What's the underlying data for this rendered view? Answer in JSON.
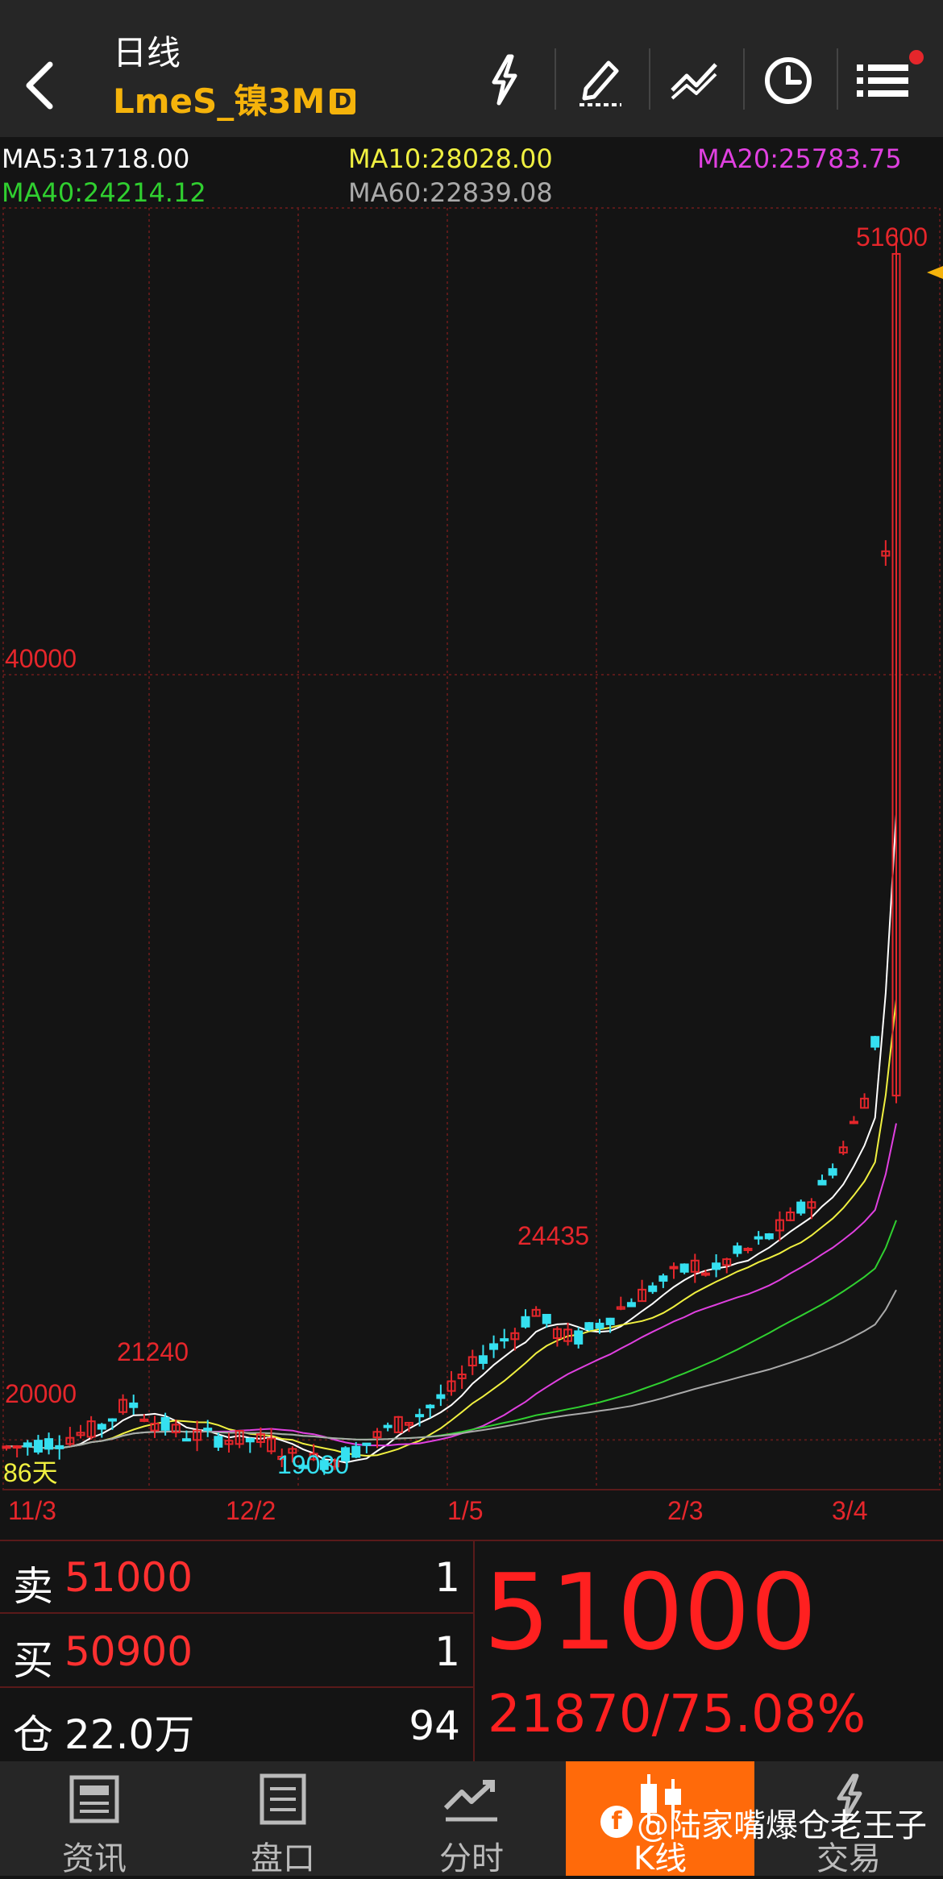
{
  "header": {
    "title": "日线",
    "symbol": "LmeS_镍3M",
    "badge": "D"
  },
  "ma_legend": {
    "ma5": "MA5:31718.00",
    "ma10": "MA10:28028.00",
    "ma20": "MA20:25783.75",
    "ma40": "MA40:24214.12",
    "ma60": "MA60:22839.08"
  },
  "chart_data": {
    "type": "candlestick",
    "price_labels": {
      "high_label": "51600",
      "level_40000": "40000",
      "level_20000": "20000",
      "peak_jan": "24435",
      "peak_nov": "21240",
      "low_dec": "19030",
      "days_label": "86天"
    },
    "x_labels": [
      "11/3",
      "12/2",
      "1/5",
      "2/3",
      "3/4"
    ],
    "ylim": [
      18700,
      52200
    ],
    "gridlines": [
      40000,
      20000
    ],
    "colors": {
      "up": "#e5262b",
      "down": "#35e0f0",
      "ma5": "#ffffff",
      "ma10": "#f0f040",
      "ma20": "#e040e0",
      "ma40": "#30d030",
      "ma60": "#aaaaaa",
      "grid": "#5a1a1a"
    }
  },
  "quote": {
    "sell_label": "卖",
    "sell_price": "51000",
    "sell_qty": "1",
    "buy_label": "买",
    "buy_price": "50900",
    "buy_qty": "1",
    "oi_label": "仓",
    "oi_value": "22.0万",
    "oi_num": "94",
    "last_price": "51000",
    "change": "21870/75.08%"
  },
  "nav": {
    "items": [
      {
        "label": "资讯",
        "icon": "news-icon"
      },
      {
        "label": "盘口",
        "icon": "orderbook-icon"
      },
      {
        "label": "分时",
        "icon": "timeshare-icon"
      },
      {
        "label": "K线",
        "icon": "kline-icon"
      },
      {
        "label": "交易",
        "icon": "trade-icon"
      }
    ],
    "active": 3
  },
  "watermark": "@陆家嘴爆仓老王子"
}
